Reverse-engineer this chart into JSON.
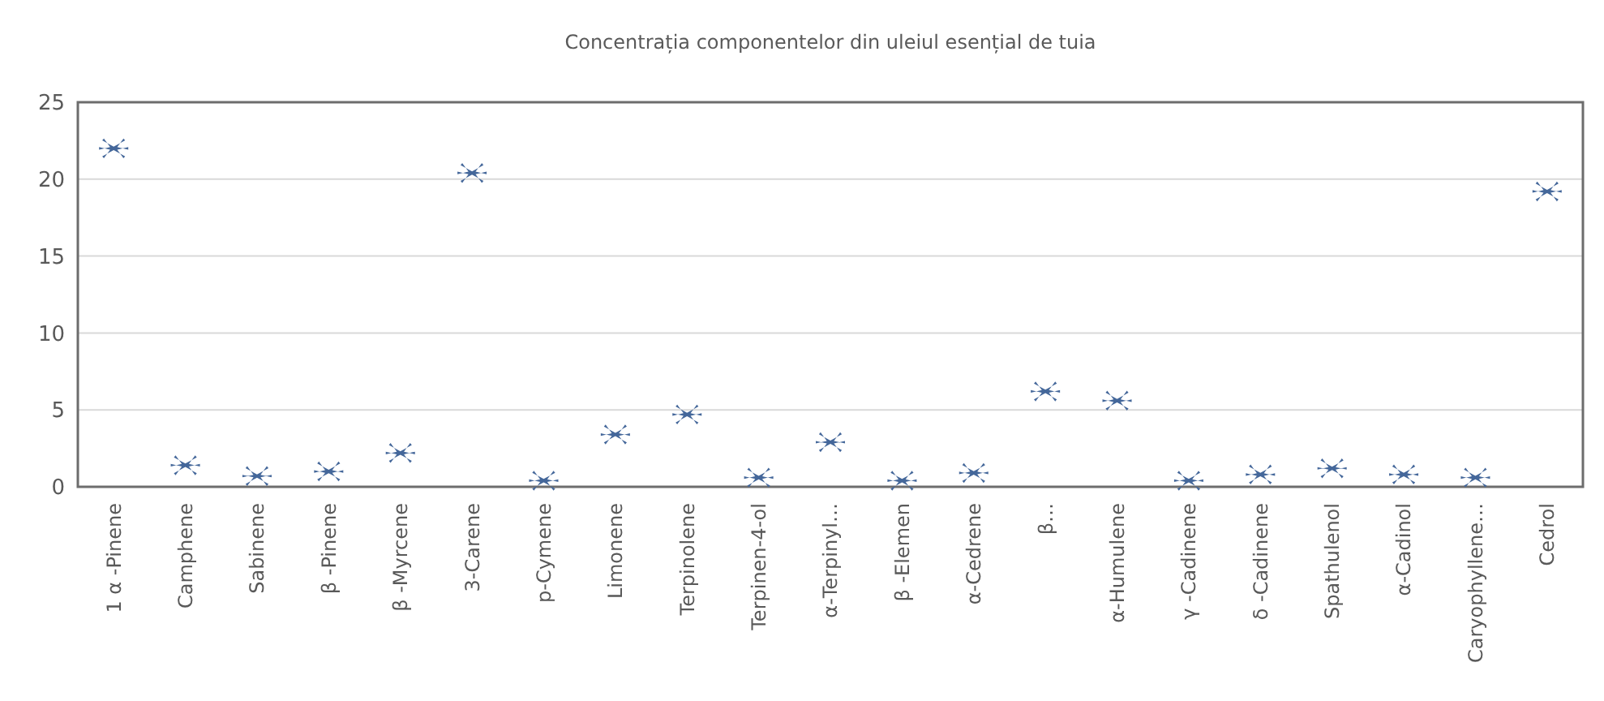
{
  "chart_data": {
    "type": "scatter",
    "title": "Concentrația componentelor din uleiul esențial de tuia",
    "categories": [
      "1 α -Pinene",
      "Camphene",
      "Sabinene",
      "β -Pinene",
      "β -Myrcene",
      "3-Carene",
      "p-Cymene",
      "Limonene",
      "Terpinolene",
      "Terpinen-4-ol",
      "α-Terpinyl…",
      "β -Elemen",
      "α-Cedrene",
      "β…",
      "α-Humulene",
      "γ -Cadinene",
      "δ -Cadinene",
      "Spathulenol",
      "α-Cadinol",
      "Caryophyllene…",
      "Cedrol"
    ],
    "series": [
      {
        "color": "#44679a",
        "values": [
          22.0,
          1.4,
          0.7,
          1.0,
          2.2,
          20.4,
          0.4,
          3.4,
          4.7,
          0.6,
          2.9,
          0.4,
          0.9,
          6.2,
          5.6,
          0.4,
          0.8,
          1.2,
          0.8,
          0.6,
          19.2
        ]
      }
    ],
    "ylim": [
      0,
      25
    ],
    "yticks": [
      0,
      5,
      10,
      15,
      20,
      25
    ],
    "grid": "y",
    "marker": "star"
  }
}
